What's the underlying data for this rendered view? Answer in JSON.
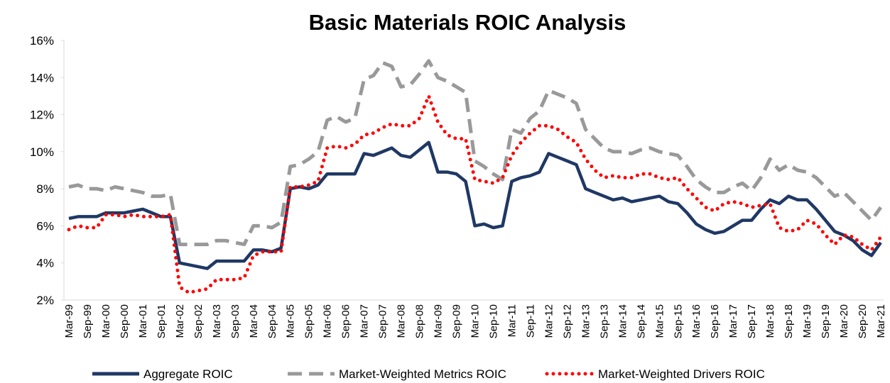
{
  "chart_data": {
    "type": "line",
    "title": "Basic Materials ROIC Analysis",
    "categories": [
      "Mar-99",
      null,
      "Sep-99",
      null,
      "Mar-00",
      null,
      "Sep-00",
      null,
      "Mar-01",
      null,
      "Sep-01",
      null,
      "Mar-02",
      null,
      "Sep-02",
      null,
      "Mar-03",
      null,
      "Sep-03",
      null,
      "Mar-04",
      null,
      "Sep-04",
      null,
      "Mar-05",
      null,
      "Sep-05",
      null,
      "Mar-06",
      null,
      "Sep-06",
      null,
      "Mar-07",
      null,
      "Sep-07",
      null,
      "Mar-08",
      null,
      "Sep-08",
      null,
      "Mar-09",
      null,
      "Sep-09",
      null,
      "Mar-10",
      null,
      "Sep-10",
      null,
      "Mar-11",
      null,
      "Sep-11",
      null,
      "Mar-12",
      null,
      "Sep-12",
      null,
      "Mar-13",
      null,
      "Sep-13",
      null,
      "Mar-14",
      null,
      "Sep-14",
      null,
      "Mar-15",
      null,
      "Sep-15",
      null,
      "Mar-16",
      null,
      "Sep-16",
      null,
      "Mar-17",
      null,
      "Sep-17",
      null,
      "Mar-18",
      null,
      "Sep-18",
      null,
      "Mar-19",
      null,
      "Sep-19",
      null,
      "Mar-20",
      null,
      "Sep-20",
      null,
      "Mar-21"
    ],
    "series": [
      {
        "name": "Aggregate ROIC",
        "color": "#1f3864",
        "style": "solid",
        "values": [
          6.4,
          6.5,
          6.5,
          6.5,
          6.7,
          6.7,
          6.7,
          6.8,
          6.9,
          6.7,
          6.5,
          6.5,
          4.0,
          3.9,
          3.8,
          3.7,
          4.1,
          4.1,
          4.1,
          4.1,
          4.7,
          4.7,
          4.6,
          4.8,
          8.0,
          8.1,
          8.0,
          8.2,
          8.8,
          8.8,
          8.8,
          8.8,
          9.9,
          9.8,
          10.0,
          10.2,
          9.8,
          9.7,
          10.1,
          10.5,
          8.9,
          8.9,
          8.8,
          8.4,
          6.0,
          6.1,
          5.9,
          6.0,
          8.4,
          8.6,
          8.7,
          8.9,
          9.9,
          9.7,
          9.5,
          9.3,
          8.0,
          7.8,
          7.6,
          7.4,
          7.5,
          7.3,
          7.4,
          7.5,
          7.6,
          7.3,
          7.2,
          6.7,
          6.1,
          5.8,
          5.6,
          5.7,
          6.0,
          6.3,
          6.3,
          6.9,
          7.4,
          7.2,
          7.6,
          7.4,
          7.4,
          6.9,
          6.3,
          5.7,
          5.5,
          5.2,
          4.7,
          4.4,
          5.1
        ]
      },
      {
        "name": "Market-Weighted Metrics ROIC",
        "color": "#999999",
        "style": "dashed",
        "values": [
          8.1,
          8.2,
          8.0,
          8.0,
          7.9,
          8.1,
          8.0,
          7.9,
          7.8,
          7.6,
          7.6,
          7.7,
          5.0,
          5.0,
          5.0,
          5.0,
          5.2,
          5.2,
          5.1,
          5.0,
          6.0,
          6.0,
          5.9,
          6.2,
          9.2,
          9.3,
          9.6,
          10.0,
          11.7,
          11.9,
          11.6,
          11.8,
          13.9,
          14.1,
          14.8,
          14.6,
          13.5,
          13.6,
          14.2,
          14.9,
          14.0,
          13.8,
          13.5,
          13.2,
          9.5,
          9.2,
          8.8,
          8.5,
          11.2,
          11.0,
          11.8,
          12.2,
          13.3,
          13.1,
          12.9,
          12.6,
          11.2,
          10.7,
          10.2,
          10.0,
          10.0,
          9.9,
          10.1,
          10.2,
          10.0,
          9.9,
          9.8,
          9.2,
          8.5,
          8.1,
          7.8,
          7.8,
          8.1,
          8.3,
          7.9,
          8.6,
          9.6,
          9.0,
          9.3,
          9.0,
          8.9,
          8.6,
          8.1,
          7.6,
          7.8,
          7.3,
          6.8,
          6.3,
          7.0
        ]
      },
      {
        "name": "Market-Weighted Drivers ROIC",
        "color": "#ff0000",
        "style": "dotted",
        "values": [
          5.8,
          6.0,
          5.9,
          5.9,
          6.6,
          6.6,
          6.5,
          6.6,
          6.5,
          6.5,
          6.5,
          6.6,
          2.7,
          2.4,
          2.5,
          2.6,
          3.1,
          3.1,
          3.1,
          3.2,
          4.4,
          4.6,
          4.6,
          4.6,
          8.1,
          8.1,
          8.2,
          8.4,
          10.2,
          10.3,
          10.2,
          10.4,
          10.9,
          11.0,
          11.3,
          11.5,
          11.4,
          11.4,
          11.8,
          13.0,
          11.6,
          10.9,
          10.7,
          10.7,
          8.5,
          8.4,
          8.3,
          8.6,
          9.8,
          10.5,
          11.0,
          11.4,
          11.4,
          11.2,
          10.8,
          10.5,
          9.6,
          9.0,
          8.6,
          8.7,
          8.6,
          8.6,
          8.8,
          8.8,
          8.6,
          8.5,
          8.6,
          8.0,
          7.5,
          7.0,
          6.8,
          7.2,
          7.3,
          7.2,
          7.0,
          7.1,
          7.2,
          5.9,
          5.7,
          5.8,
          6.3,
          6.1,
          5.5,
          5.0,
          5.5,
          5.4,
          5.0,
          4.7,
          5.4
        ]
      }
    ],
    "ylim": [
      2,
      16
    ],
    "yticks": [
      {
        "value": 2,
        "label": "2%"
      },
      {
        "value": 4,
        "label": "4%"
      },
      {
        "value": 6,
        "label": "6%"
      },
      {
        "value": 8,
        "label": "8%"
      },
      {
        "value": 10,
        "label": "10%"
      },
      {
        "value": 12,
        "label": "12%"
      },
      {
        "value": 14,
        "label": "14%"
      },
      {
        "value": 16,
        "label": "16%"
      }
    ],
    "grid": false,
    "legend": "bottom"
  }
}
